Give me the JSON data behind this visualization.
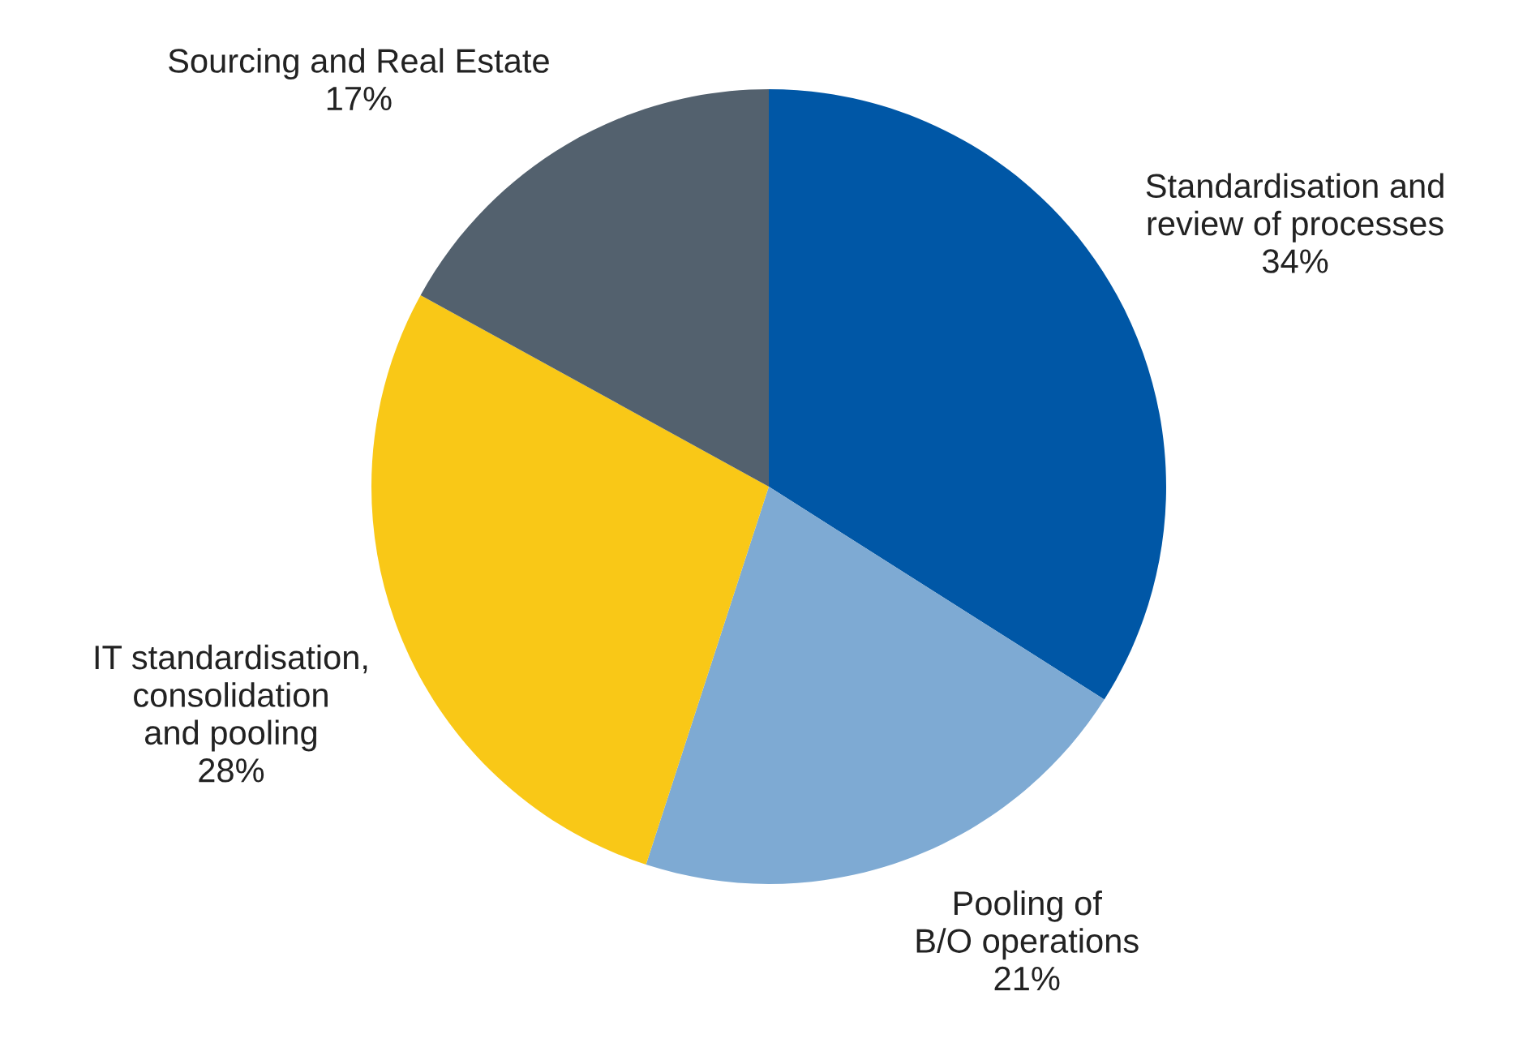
{
  "chart_data": {
    "type": "pie",
    "categories": [
      "Standardisation and\nreview of processes",
      "Pooling of\nB/O operations",
      "IT standardisation,\nconsolidation\nand pooling",
      "Sourcing and Real Estate"
    ],
    "values": [
      34,
      21,
      28,
      17
    ],
    "value_labels": [
      "34%",
      "21%",
      "28%",
      "17%"
    ],
    "colors": [
      "#0057a6",
      "#7eaad3",
      "#f9c817",
      "#53616e"
    ]
  }
}
